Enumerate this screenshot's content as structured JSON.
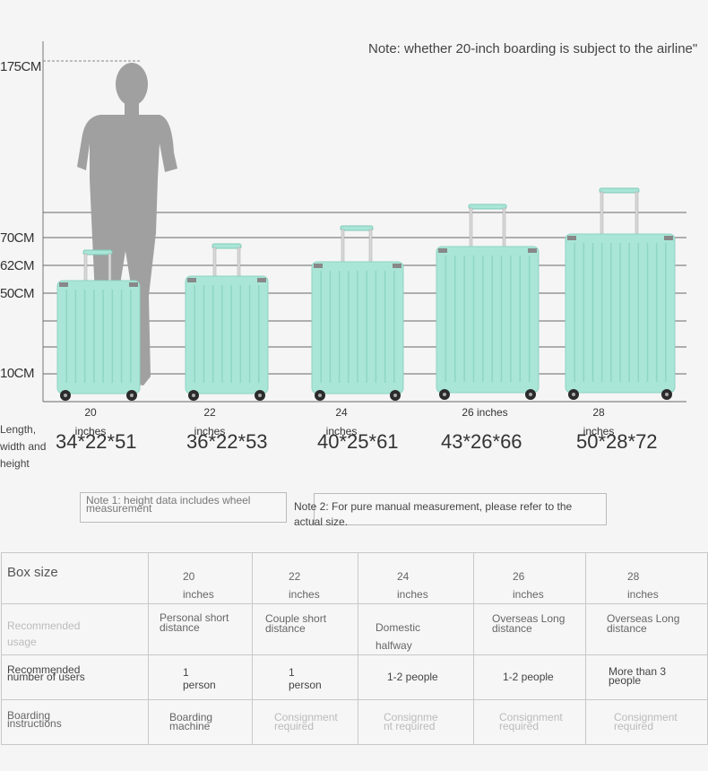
{
  "note_top": "Note: whether 20-inch boarding is subject to the airline\"",
  "y_labels": [
    "175CM",
    "70CM",
    "62CM",
    "50CM",
    "10CM"
  ],
  "dims_label": "Length, width and height",
  "suitcases": [
    {
      "size": "20",
      "unit": "inches",
      "dims": "34*22*51"
    },
    {
      "size": "22",
      "unit": "inches",
      "dims": "36*22*53"
    },
    {
      "size": "24",
      "unit": "inches",
      "dims": "40*25*61"
    },
    {
      "size": "26 inches",
      "unit": "",
      "dims": "43*26*66"
    },
    {
      "size": "28",
      "unit": "inches",
      "dims": "50*28*72"
    }
  ],
  "notes": {
    "note1": "Note 1: height data includes wheel measurement",
    "note2": "Note 2: For pure manual measurement, please refer to the actual size."
  },
  "table": {
    "header_label": "Box size",
    "sizes": [
      {
        "num": "20",
        "unit": "inches"
      },
      {
        "num": "22",
        "unit": "inches"
      },
      {
        "num": "24",
        "unit": "inches"
      },
      {
        "num": "26",
        "unit": "inches"
      },
      {
        "num": "28",
        "unit": "inches"
      }
    ],
    "rows": [
      {
        "label": "Recommended usage",
        "values": [
          "Personal short distance",
          "Couple short distance",
          "Domestic halfway",
          "Overseas Long distance",
          "Overseas Long distance"
        ]
      },
      {
        "label": "Recommended number of users",
        "values": [
          "1 person",
          "1 person",
          "1-2 people",
          "1-2 people",
          "More than 3 people"
        ]
      },
      {
        "label": "Boarding instructions",
        "values": [
          "Boarding machine",
          "Consignment required",
          "Consignment required",
          "Consignment required",
          "Consignment required"
        ]
      }
    ]
  },
  "colors": {
    "suitcase": "#a9e6d7",
    "suitcase_dark": "#8fd6c4",
    "silhouette": "#9f9f9f",
    "gridline": "#666666"
  }
}
